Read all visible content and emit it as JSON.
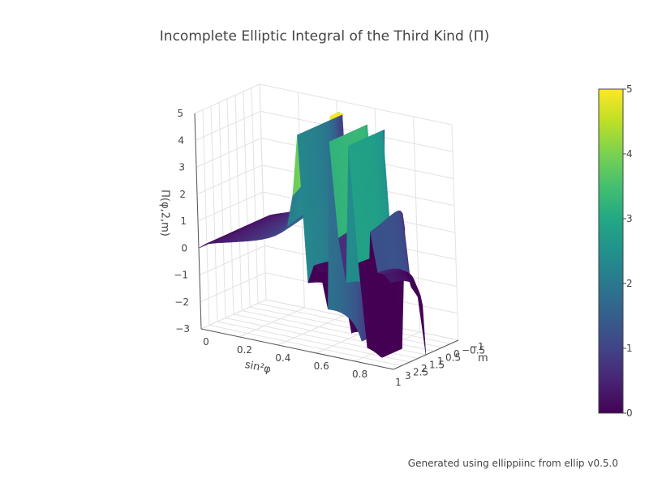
{
  "chart_data": {
    "type": "surface",
    "title": "Incomplete Elliptic Integral of the Third Kind (Π)",
    "x_axis": {
      "label": "sin²φ",
      "range": [
        0,
        1
      ],
      "ticks": [
        "0",
        "0.2",
        "0.4",
        "0.6",
        "0.8",
        "1"
      ]
    },
    "y_axis": {
      "label": "m",
      "range": [
        -1,
        3
      ],
      "ticks": [
        "−1",
        "−0.5",
        "0",
        "0.5",
        "1",
        "1.5",
        "2",
        "2.5",
        "3"
      ]
    },
    "z_axis": {
      "label": "Π(φ,2,m)",
      "range": [
        -3,
        5
      ],
      "ticks": [
        "−3",
        "−2",
        "−1",
        "0",
        "1",
        "2",
        "3",
        "4",
        "5"
      ]
    },
    "n": 2,
    "colorscale": "Viridis",
    "colorbar": {
      "range": [
        0,
        5
      ],
      "ticks": [
        "0",
        "1",
        "2",
        "3",
        "4",
        "5"
      ]
    },
    "clip_range": [
      -3,
      5
    ],
    "grid": true
  },
  "footer": {
    "text": "Generated using ellippiinc from ellip v0.5.0"
  }
}
